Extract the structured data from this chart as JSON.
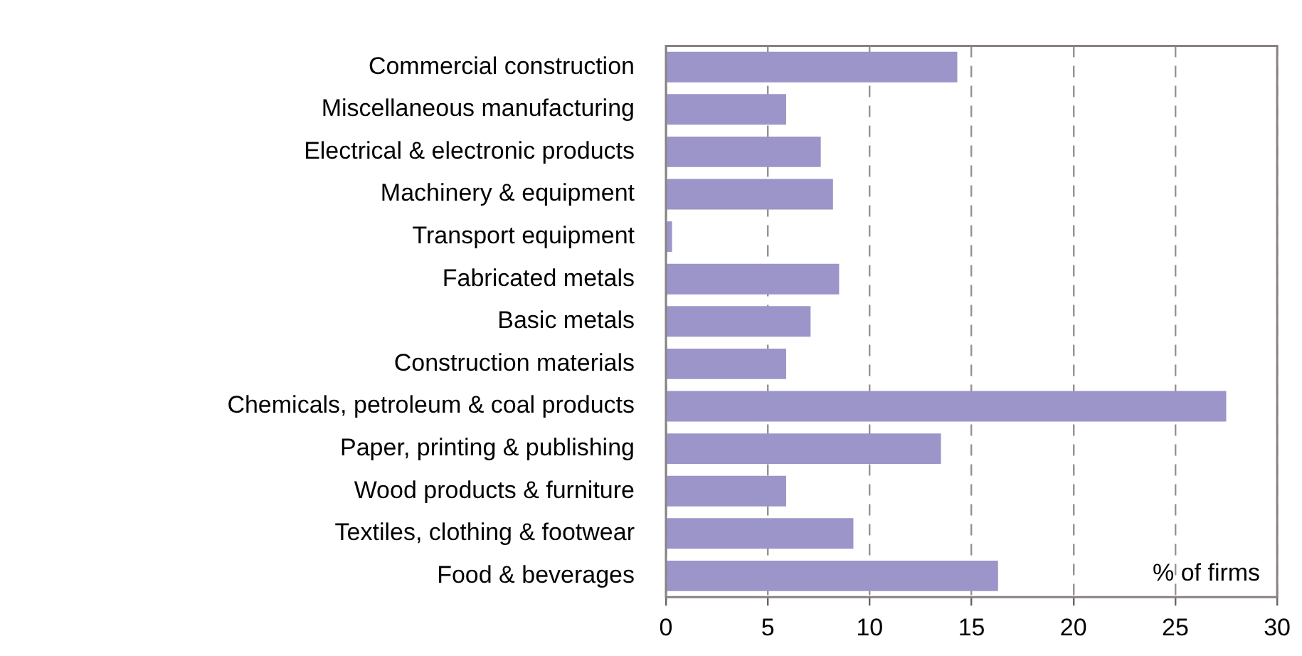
{
  "chart_data": {
    "type": "bar",
    "orientation": "horizontal",
    "categories": [
      "Commercial construction",
      "Miscellaneous manufacturing",
      "Electrical & electronic products",
      "Machinery & equipment",
      "Transport equipment",
      "Fabricated metals",
      "Basic metals",
      "Construction materials",
      "Chemicals, petroleum & coal products",
      "Paper, printing & publishing",
      "Wood products & furniture",
      "Textiles, clothing & footwear",
      "Food & beverages"
    ],
    "values": [
      14.3,
      5.9,
      7.6,
      8.2,
      0.3,
      8.5,
      7.1,
      5.9,
      27.5,
      13.5,
      5.9,
      9.2,
      16.3
    ],
    "color": "#9b95c9",
    "xlim": [
      0,
      30
    ],
    "xticks": [
      0,
      5,
      10,
      15,
      20,
      25,
      30
    ],
    "grid": "x",
    "annotations": [
      "% of firms"
    ]
  }
}
